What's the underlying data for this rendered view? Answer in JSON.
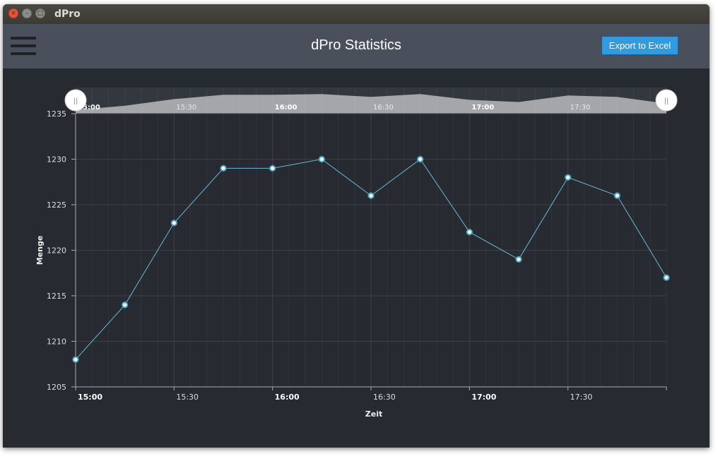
{
  "window": {
    "title": "dPro",
    "close_glyph": "×",
    "minimize_glyph": "–",
    "maximize_glyph": "□"
  },
  "header": {
    "title": "dPro Statistics",
    "export_label": "Export to Excel",
    "menu_icon": "hamburger-menu-icon"
  },
  "colors": {
    "background": "#272a31",
    "header": "#4a505b",
    "accent": "#2f9be0",
    "series_line": "#6bb7d6"
  },
  "chart_data": {
    "type": "line",
    "xlabel": "Zeit",
    "ylabel": "Menge",
    "ylim": [
      1205,
      1235
    ],
    "yticks": [
      1205,
      1210,
      1215,
      1220,
      1225,
      1230,
      1235
    ],
    "xlim": [
      "15:00",
      "18:00"
    ],
    "xticks": [
      {
        "time": "15:00",
        "label": "15:00",
        "major": true
      },
      {
        "time": "15:30",
        "label": "15:30",
        "major": false
      },
      {
        "time": "16:00",
        "label": "16:00",
        "major": true
      },
      {
        "time": "16:30",
        "label": "16:30",
        "major": false
      },
      {
        "time": "17:00",
        "label": "17:00",
        "major": true
      },
      {
        "time": "17:30",
        "label": "17:30",
        "major": false
      }
    ],
    "grid": true,
    "points": [
      {
        "x": "15:00",
        "y": 1208
      },
      {
        "x": "15:15",
        "y": 1214
      },
      {
        "x": "15:30",
        "y": 1223
      },
      {
        "x": "15:45",
        "y": 1229
      },
      {
        "x": "16:00",
        "y": 1229
      },
      {
        "x": "16:15",
        "y": 1230
      },
      {
        "x": "16:30",
        "y": 1226
      },
      {
        "x": "16:45",
        "y": 1230
      },
      {
        "x": "17:00",
        "y": 1222
      },
      {
        "x": "17:15",
        "y": 1219
      },
      {
        "x": "17:30",
        "y": 1228
      },
      {
        "x": "17:45",
        "y": 1226
      },
      {
        "x": "18:00",
        "y": 1217
      }
    ],
    "navigator": {
      "xticks": [
        {
          "time": "15:00",
          "label": "15:00",
          "major": true
        },
        {
          "time": "15:30",
          "label": "15:30",
          "major": false
        },
        {
          "time": "16:00",
          "label": "16:00",
          "major": true
        },
        {
          "time": "16:30",
          "label": "16:30",
          "major": false
        },
        {
          "time": "17:00",
          "label": "17:00",
          "major": true
        },
        {
          "time": "17:30",
          "label": "17:30",
          "major": false
        }
      ],
      "left_handle_glyph": "||",
      "right_handle_glyph": "||"
    }
  }
}
